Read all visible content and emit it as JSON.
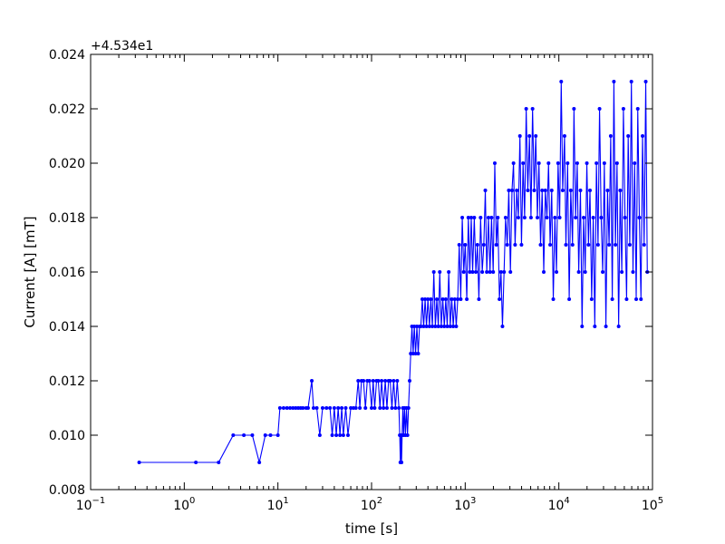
{
  "chart_data": {
    "type": "line",
    "xlabel": "time [s]",
    "ylabel": "Current [A] [mT]",
    "offset_text": "+4.534e1",
    "x_scale": "log",
    "xlim": [
      0.1,
      100000
    ],
    "ylim": [
      0.008,
      0.024
    ],
    "x_ticks": [
      {
        "value": 0.1,
        "base": "10",
        "exp": "−1"
      },
      {
        "value": 1,
        "base": "10",
        "exp": "0"
      },
      {
        "value": 10,
        "base": "10",
        "exp": "1"
      },
      {
        "value": 100,
        "base": "10",
        "exp": "2"
      },
      {
        "value": 1000,
        "base": "10",
        "exp": "3"
      },
      {
        "value": 10000,
        "base": "10",
        "exp": "4"
      },
      {
        "value": 100000,
        "base": "10",
        "exp": "5"
      }
    ],
    "y_ticks": [
      {
        "value": 0.008,
        "label": "0.008"
      },
      {
        "value": 0.01,
        "label": "0.010"
      },
      {
        "value": 0.012,
        "label": "0.012"
      },
      {
        "value": 0.014,
        "label": "0.014"
      },
      {
        "value": 0.016,
        "label": "0.016"
      },
      {
        "value": 0.018,
        "label": "0.018"
      },
      {
        "value": 0.02,
        "label": "0.020"
      },
      {
        "value": 0.022,
        "label": "0.022"
      },
      {
        "value": 0.024,
        "label": "0.024"
      }
    ],
    "grid": false,
    "series": [
      {
        "color": "#0000ff",
        "marker": "circle",
        "points": [
          [
            0.33,
            0.009
          ],
          [
            1.33,
            0.009
          ],
          [
            2.33,
            0.009
          ],
          [
            3.33,
            0.01
          ],
          [
            4.33,
            0.01
          ],
          [
            5.33,
            0.01
          ],
          [
            6.33,
            0.009
          ],
          [
            7.33,
            0.01
          ],
          [
            8.33,
            0.01
          ],
          [
            10.0,
            0.01
          ],
          [
            10.5,
            0.011
          ],
          [
            11.5,
            0.011
          ],
          [
            12.5,
            0.011
          ],
          [
            13.5,
            0.011
          ],
          [
            14.5,
            0.011
          ],
          [
            15.5,
            0.011
          ],
          [
            16.5,
            0.011
          ],
          [
            17.5,
            0.011
          ],
          [
            18.5,
            0.011
          ],
          [
            20.0,
            0.011
          ],
          [
            21.0,
            0.011
          ],
          [
            23.0,
            0.012
          ],
          [
            24.0,
            0.011
          ],
          [
            26.0,
            0.011
          ],
          [
            28.0,
            0.01
          ],
          [
            30.0,
            0.011
          ],
          [
            33.0,
            0.011
          ],
          [
            36.0,
            0.011
          ],
          [
            38.0,
            0.01
          ],
          [
            40.0,
            0.011
          ],
          [
            42.0,
            0.01
          ],
          [
            44.0,
            0.011
          ],
          [
            46.0,
            0.01
          ],
          [
            48.0,
            0.011
          ],
          [
            50.0,
            0.01
          ],
          [
            53.0,
            0.011
          ],
          [
            56.0,
            0.01
          ],
          [
            60.0,
            0.011
          ],
          [
            64.0,
            0.011
          ],
          [
            68.0,
            0.011
          ],
          [
            72.0,
            0.012
          ],
          [
            75.0,
            0.011
          ],
          [
            78.0,
            0.012
          ],
          [
            82.0,
            0.012
          ],
          [
            86.0,
            0.011
          ],
          [
            90.0,
            0.012
          ],
          [
            95.0,
            0.012
          ],
          [
            100.0,
            0.011
          ],
          [
            104.0,
            0.012
          ],
          [
            108.0,
            0.011
          ],
          [
            113.0,
            0.012
          ],
          [
            118.0,
            0.012
          ],
          [
            123.0,
            0.011
          ],
          [
            128.0,
            0.012
          ],
          [
            134.0,
            0.011
          ],
          [
            140.0,
            0.012
          ],
          [
            146.0,
            0.011
          ],
          [
            152.0,
            0.012
          ],
          [
            158.0,
            0.012
          ],
          [
            165.0,
            0.011
          ],
          [
            172.0,
            0.012
          ],
          [
            180.0,
            0.011
          ],
          [
            188.0,
            0.012
          ],
          [
            196.0,
            0.011
          ],
          [
            200.0,
            0.01
          ],
          [
            203.0,
            0.009
          ],
          [
            206.0,
            0.01
          ],
          [
            209.0,
            0.009
          ],
          [
            212.0,
            0.01
          ],
          [
            216.0,
            0.011
          ],
          [
            220.0,
            0.01
          ],
          [
            225.0,
            0.011
          ],
          [
            230.0,
            0.01
          ],
          [
            236.0,
            0.011
          ],
          [
            242.0,
            0.01
          ],
          [
            248.0,
            0.011
          ],
          [
            255.0,
            0.012
          ],
          [
            262.0,
            0.013
          ],
          [
            270.0,
            0.014
          ],
          [
            278.0,
            0.013
          ],
          [
            286.0,
            0.014
          ],
          [
            295.0,
            0.013
          ],
          [
            305.0,
            0.014
          ],
          [
            315.0,
            0.013
          ],
          [
            325.0,
            0.014
          ],
          [
            336.0,
            0.014
          ],
          [
            348.0,
            0.015
          ],
          [
            360.0,
            0.014
          ],
          [
            373.0,
            0.015
          ],
          [
            386.0,
            0.014
          ],
          [
            400.0,
            0.015
          ],
          [
            415.0,
            0.014
          ],
          [
            430.0,
            0.015
          ],
          [
            446.0,
            0.014
          ],
          [
            462.0,
            0.016
          ],
          [
            480.0,
            0.014
          ],
          [
            498.0,
            0.015
          ],
          [
            516.0,
            0.014
          ],
          [
            535.0,
            0.016
          ],
          [
            555.0,
            0.014
          ],
          [
            576.0,
            0.015
          ],
          [
            598.0,
            0.014
          ],
          [
            620.0,
            0.015
          ],
          [
            643.0,
            0.014
          ],
          [
            667.0,
            0.016
          ],
          [
            692.0,
            0.014
          ],
          [
            718.0,
            0.015
          ],
          [
            745.0,
            0.014
          ],
          [
            773.0,
            0.015
          ],
          [
            802.0,
            0.014
          ],
          [
            832.0,
            0.015
          ],
          [
            863.0,
            0.017
          ],
          [
            896.0,
            0.015
          ],
          [
            930.0,
            0.018
          ],
          [
            965.0,
            0.016
          ],
          [
            1000.0,
            0.017
          ],
          [
            1040.0,
            0.015
          ],
          [
            1080.0,
            0.018
          ],
          [
            1120.0,
            0.016
          ],
          [
            1160.0,
            0.018
          ],
          [
            1200.0,
            0.016
          ],
          [
            1250.0,
            0.018
          ],
          [
            1300.0,
            0.016
          ],
          [
            1350.0,
            0.017
          ],
          [
            1400.0,
            0.015
          ],
          [
            1460.0,
            0.018
          ],
          [
            1520.0,
            0.016
          ],
          [
            1580.0,
            0.017
          ],
          [
            1640.0,
            0.019
          ],
          [
            1700.0,
            0.016
          ],
          [
            1770.0,
            0.018
          ],
          [
            1840.0,
            0.016
          ],
          [
            1910.0,
            0.018
          ],
          [
            1990.0,
            0.016
          ],
          [
            2070.0,
            0.02
          ],
          [
            2150.0,
            0.017
          ],
          [
            2230.0,
            0.018
          ],
          [
            2320.0,
            0.015
          ],
          [
            2410.0,
            0.016
          ],
          [
            2500.0,
            0.014
          ],
          [
            2600.0,
            0.016
          ],
          [
            2700.0,
            0.018
          ],
          [
            2810.0,
            0.017
          ],
          [
            2920.0,
            0.019
          ],
          [
            3040.0,
            0.016
          ],
          [
            3160.0,
            0.019
          ],
          [
            3280.0,
            0.02
          ],
          [
            3410.0,
            0.017
          ],
          [
            3550.0,
            0.019
          ],
          [
            3690.0,
            0.018
          ],
          [
            3840.0,
            0.021
          ],
          [
            3990.0,
            0.017
          ],
          [
            4150.0,
            0.02
          ],
          [
            4310.0,
            0.018
          ],
          [
            4480.0,
            0.022
          ],
          [
            4660.0,
            0.019
          ],
          [
            4850.0,
            0.021
          ],
          [
            5040.0,
            0.018
          ],
          [
            5240.0,
            0.022
          ],
          [
            5450.0,
            0.019
          ],
          [
            5670.0,
            0.021
          ],
          [
            5900.0,
            0.018
          ],
          [
            6130.0,
            0.02
          ],
          [
            6380.0,
            0.017
          ],
          [
            6630.0,
            0.019
          ],
          [
            6900.0,
            0.016
          ],
          [
            7170.0,
            0.019
          ],
          [
            7460.0,
            0.018
          ],
          [
            7760.0,
            0.02
          ],
          [
            8070.0,
            0.017
          ],
          [
            8390.0,
            0.019
          ],
          [
            8720.0,
            0.015
          ],
          [
            9070.0,
            0.018
          ],
          [
            9430.0,
            0.016
          ],
          [
            9810.0,
            0.02
          ],
          [
            10200.0,
            0.018
          ],
          [
            10600.0,
            0.023
          ],
          [
            11000.0,
            0.019
          ],
          [
            11500.0,
            0.021
          ],
          [
            11900.0,
            0.017
          ],
          [
            12400.0,
            0.02
          ],
          [
            12900.0,
            0.015
          ],
          [
            13400.0,
            0.019
          ],
          [
            14000.0,
            0.017
          ],
          [
            14500.0,
            0.022
          ],
          [
            15100.0,
            0.018
          ],
          [
            15700.0,
            0.02
          ],
          [
            16300.0,
            0.016
          ],
          [
            17000.0,
            0.019
          ],
          [
            17700.0,
            0.014
          ],
          [
            18400.0,
            0.018
          ],
          [
            19100.0,
            0.016
          ],
          [
            19900.0,
            0.02
          ],
          [
            20700.0,
            0.017
          ],
          [
            21500.0,
            0.019
          ],
          [
            22400.0,
            0.015
          ],
          [
            23300.0,
            0.018
          ],
          [
            24200.0,
            0.014
          ],
          [
            25200.0,
            0.02
          ],
          [
            26200.0,
            0.017
          ],
          [
            27200.0,
            0.022
          ],
          [
            28300.0,
            0.018
          ],
          [
            29400.0,
            0.016
          ],
          [
            30600.0,
            0.02
          ],
          [
            31800.0,
            0.014
          ],
          [
            33100.0,
            0.019
          ],
          [
            34400.0,
            0.017
          ],
          [
            35800.0,
            0.021
          ],
          [
            37200.0,
            0.015
          ],
          [
            38700.0,
            0.023
          ],
          [
            40200.0,
            0.017
          ],
          [
            41800.0,
            0.02
          ],
          [
            43500.0,
            0.014
          ],
          [
            45200.0,
            0.019
          ],
          [
            47000.0,
            0.016
          ],
          [
            48900.0,
            0.022
          ],
          [
            50900.0,
            0.018
          ],
          [
            52900.0,
            0.015
          ],
          [
            55000.0,
            0.021
          ],
          [
            57200.0,
            0.017
          ],
          [
            59500.0,
            0.023
          ],
          [
            61900.0,
            0.016
          ],
          [
            64400.0,
            0.02
          ],
          [
            67000.0,
            0.015
          ],
          [
            69600.0,
            0.022
          ],
          [
            72400.0,
            0.018
          ],
          [
            75300.0,
            0.015
          ],
          [
            78300.0,
            0.021
          ],
          [
            81400.0,
            0.017
          ],
          [
            84700.0,
            0.023
          ],
          [
            88000.0,
            0.016
          ]
        ]
      }
    ]
  }
}
